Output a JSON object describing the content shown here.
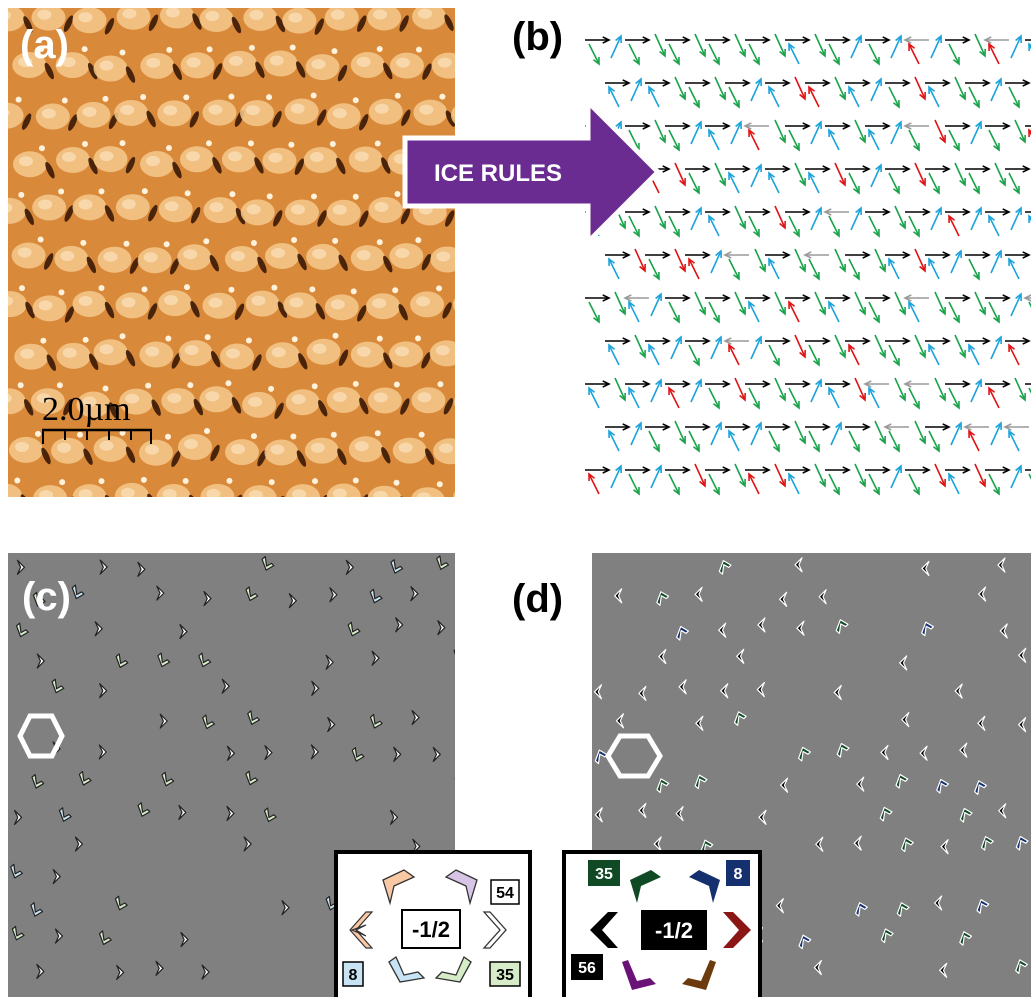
{
  "panels": {
    "a": {
      "label": "(a)",
      "scale_bar": "2.0µm",
      "colors": {
        "base": "#d9893a",
        "bump": "#f4c98d",
        "dark": "#3a1a06"
      }
    },
    "b": {
      "label": "(b)",
      "colors": [
        "#000000",
        "#1ba3dc",
        "#1aa34a",
        "#e01414",
        "#9a9a9a"
      ]
    },
    "c": {
      "label": "(c)",
      "legend": {
        "center": "-1/2",
        "counts": {
          "top_right": "54",
          "bottom_left": "8",
          "bottom_right": "35"
        },
        "colors": {
          "peach": "#f9c8a5",
          "lavender": "#d8c5e6",
          "blue": "#c7e3f4",
          "green": "#d6ecc8"
        }
      }
    },
    "d": {
      "label": "(d)",
      "legend": {
        "center": "-1/2",
        "counts": {
          "top_left": "35",
          "top_right": "8",
          "bottom_left": "56"
        },
        "colors": {
          "dark_green": "#0f4a24",
          "navy": "#15306e",
          "black": "#000000",
          "crimson": "#8b1616",
          "purple": "#6a1278",
          "brown": "#6b3b0d"
        }
      }
    }
  },
  "arrow_banner": {
    "text": "ICE RULES",
    "color": "#6a2c91"
  }
}
